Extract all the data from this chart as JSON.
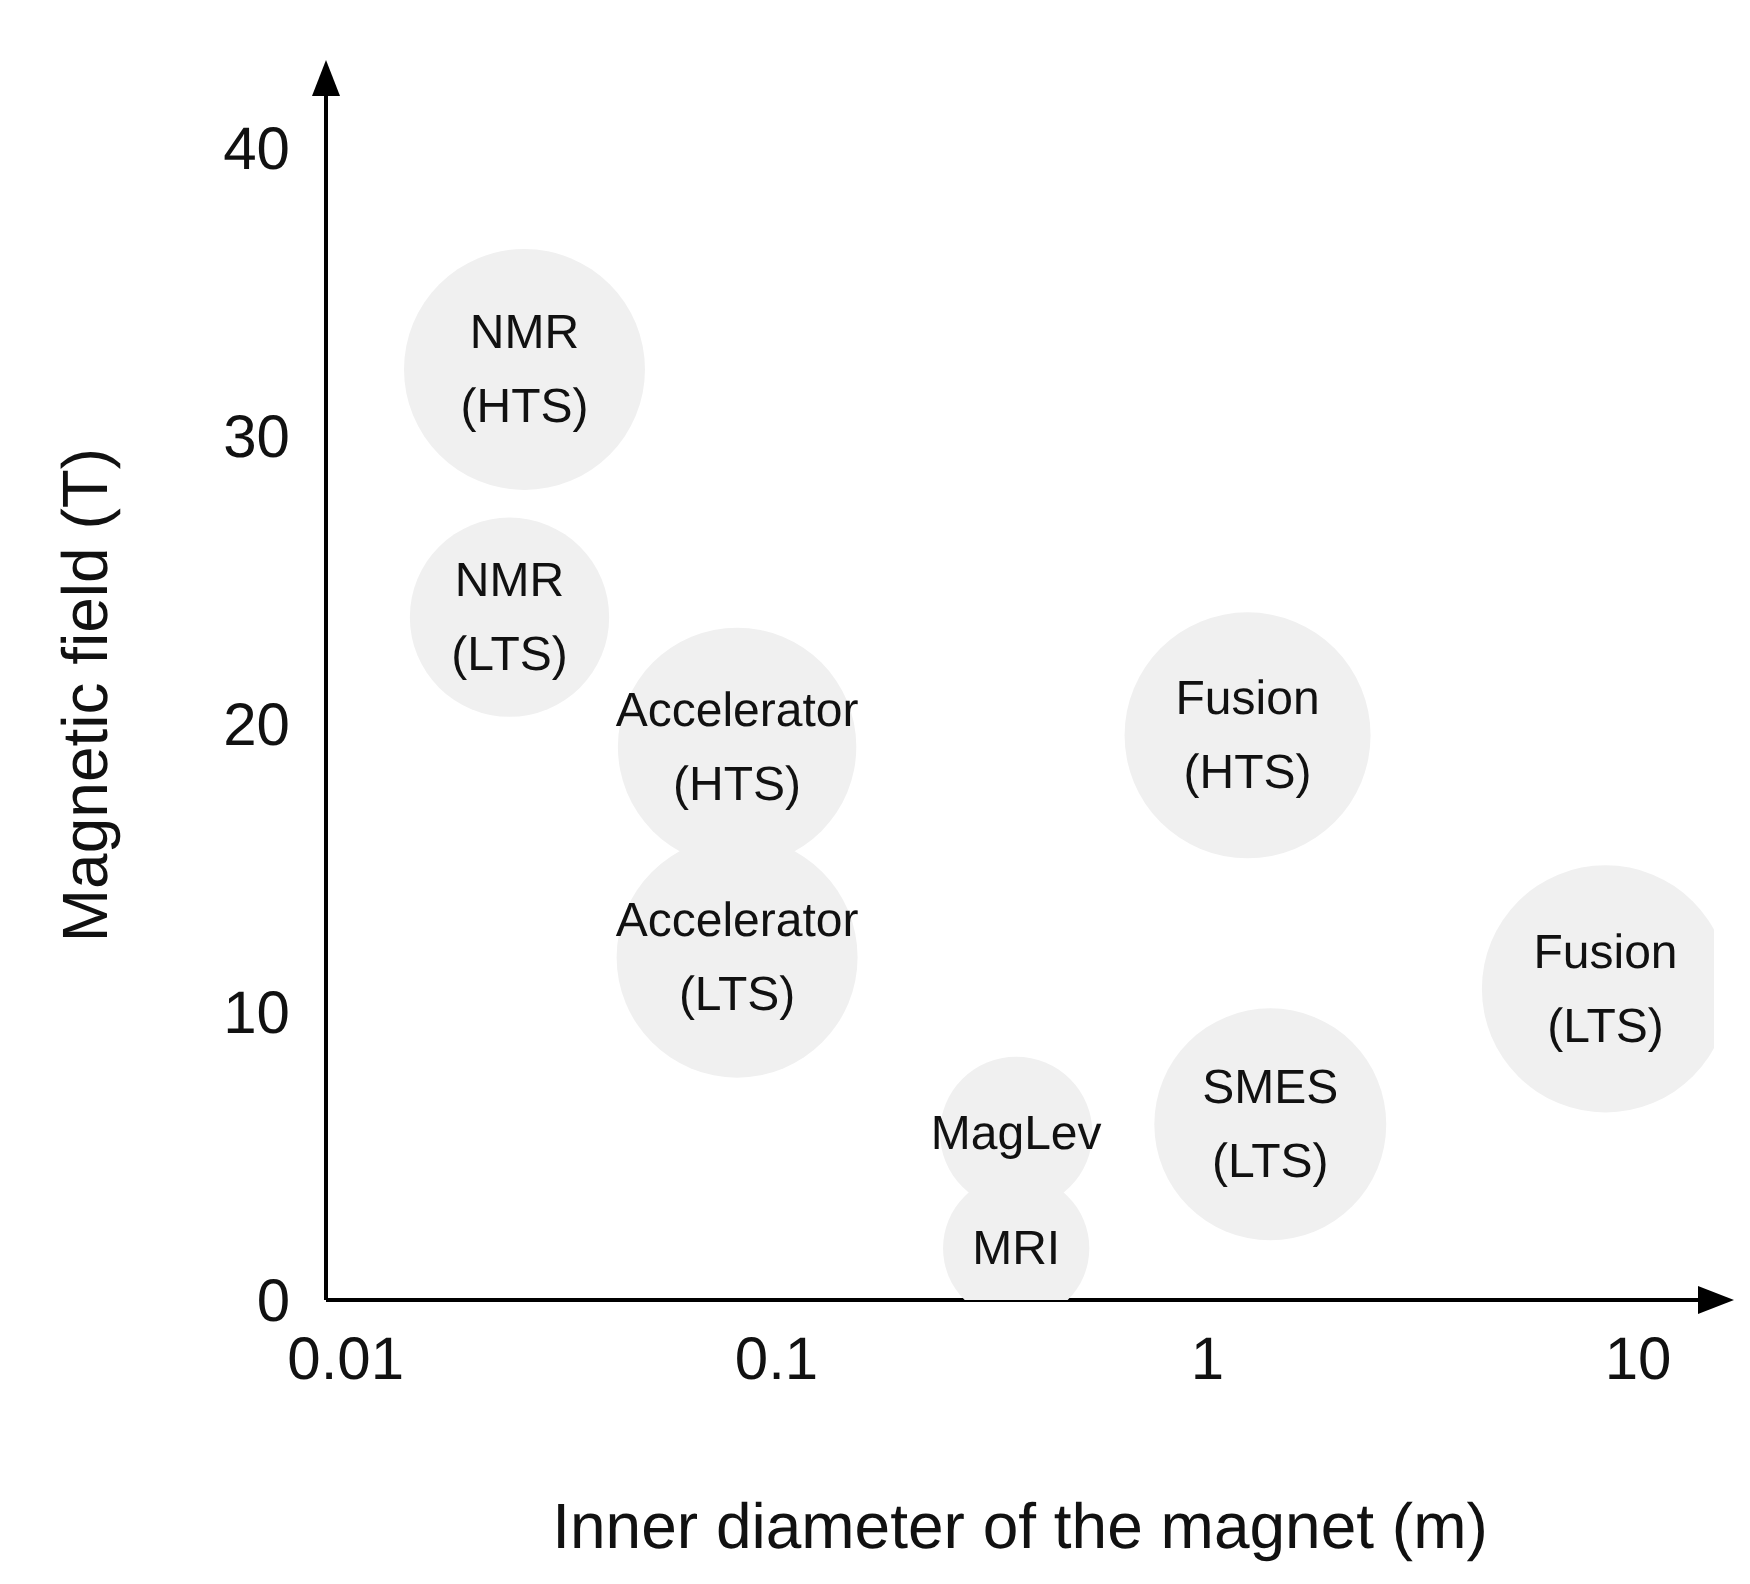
{
  "chart_data": {
    "type": "bubble",
    "xlabel": "Inner diameter of the magnet (m)",
    "ylabel": "Magnetic field (T)",
    "x": [
      0.026,
      0.024,
      0.081,
      0.081,
      1.24,
      8.4,
      1.4,
      0.36,
      0.36
    ],
    "values": [
      32.3,
      23.7,
      19.2,
      11.9,
      19.6,
      10.8,
      6.1,
      5.8,
      1.8
    ],
    "sizes": [
      0.95,
      0.65,
      0.93,
      0.95,
      0.99,
      1,
      0.88,
      0.38,
      0.35
    ],
    "color": "#f0f0f0",
    "log": "x",
    "xlim": [
      0.009,
      15
    ],
    "xticks": [
      0.01,
      0.1,
      1,
      10
    ],
    "ylim": [
      0,
      42
    ],
    "yticks": [
      0,
      10,
      20,
      30,
      40
    ],
    "grid": false,
    "legend": false,
    "annotations": [
      {
        "text": "NMR (HTS)",
        "x": 0.026,
        "y": 32.3
      },
      {
        "text": "NMR (LTS)",
        "x": 0.024,
        "y": 23.7
      },
      {
        "text": "Accelerator (HTS)",
        "x": 0.081,
        "y": 19.2
      },
      {
        "text": "Accelerator (LTS)",
        "x": 0.081,
        "y": 11.9
      },
      {
        "text": "Fusion (HTS)",
        "x": 1.24,
        "y": 19.6
      },
      {
        "text": "Fusion (LTS)",
        "x": 8.4,
        "y": 10.8
      },
      {
        "text": "SMES (LTS)",
        "x": 1.4,
        "y": 6.1
      },
      {
        "text": "MagLev",
        "x": 0.36,
        "y": 5.8
      },
      {
        "text": "MRI",
        "x": 0.36,
        "y": 1.8
      }
    ]
  }
}
